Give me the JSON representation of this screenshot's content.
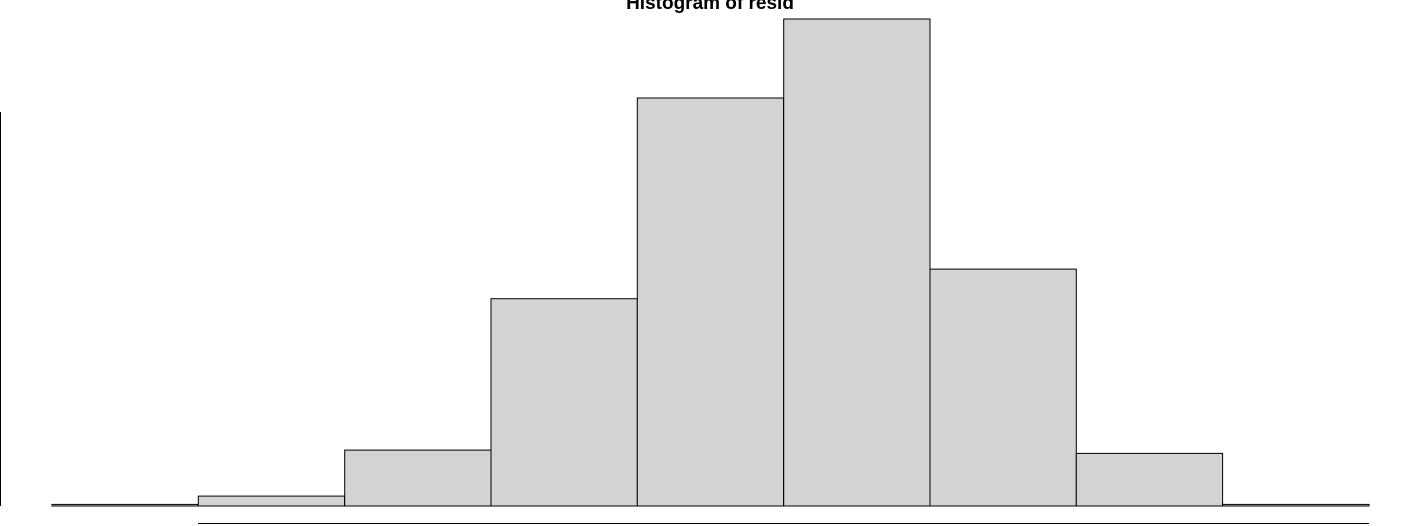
{
  "chart_data": {
    "type": "histogram",
    "title": "Histogram of resid",
    "xlabel": "",
    "ylabel": "",
    "bins": [
      {
        "index": 0,
        "count": 0.5
      },
      {
        "index": 1,
        "count": 3
      },
      {
        "index": 2,
        "count": 17
      },
      {
        "index": 3,
        "count": 63
      },
      {
        "index": 4,
        "count": 124
      },
      {
        "index": 5,
        "count": 148
      },
      {
        "index": 6,
        "count": 72
      },
      {
        "index": 7,
        "count": 16
      },
      {
        "index": 8,
        "count": 0.5
      }
    ],
    "ylim": [
      0,
      148
    ],
    "grid": false,
    "bar_fill": "#d3d3d3",
    "bar_stroke": "#000000"
  }
}
